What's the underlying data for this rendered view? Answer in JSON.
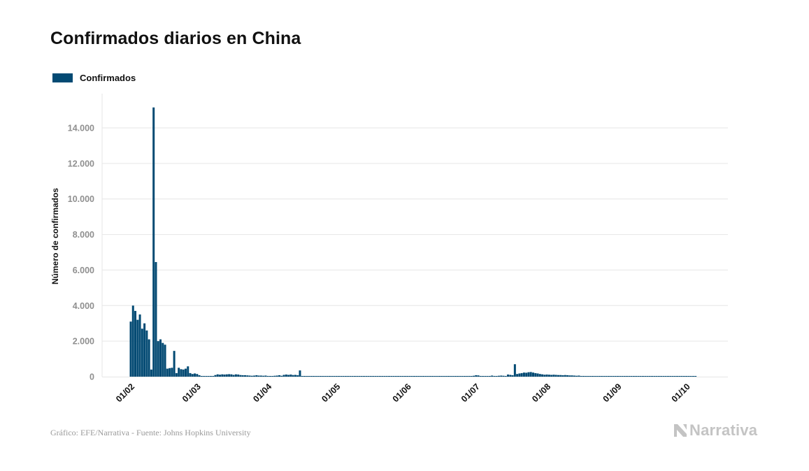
{
  "header": {
    "title": "Confirmados diarios en China"
  },
  "legend": {
    "label": "Confirmados",
    "color": "#034a73"
  },
  "footer": {
    "source": "Gráfico: EFE/Narrativa - Fuente: Johns Hopkins University",
    "logo_text": "Narrativa"
  },
  "chart_data": {
    "type": "bar",
    "title": "Confirmados diarios en China",
    "ylabel": "Número de confirmados",
    "xlabel": "",
    "ylim": [
      0,
      16000
    ],
    "grid": true,
    "legend_position": "top-left",
    "bar_color": "#034a73",
    "yticks": [
      {
        "value": 0,
        "label": "0"
      },
      {
        "value": 2000,
        "label": "2.000"
      },
      {
        "value": 4000,
        "label": "4.000"
      },
      {
        "value": 6000,
        "label": "6.000"
      },
      {
        "value": 8000,
        "label": "8.000"
      },
      {
        "value": 10000,
        "label": "10.000"
      },
      {
        "value": 12000,
        "label": "12.000"
      },
      {
        "value": 14000,
        "label": "14.000"
      }
    ],
    "xticks": [
      {
        "index": 0,
        "label": "01/02"
      },
      {
        "index": 29,
        "label": "01/03"
      },
      {
        "index": 60,
        "label": "01/04"
      },
      {
        "index": 90,
        "label": "01/05"
      },
      {
        "index": 121,
        "label": "01/06"
      },
      {
        "index": 151,
        "label": "01/07"
      },
      {
        "index": 182,
        "label": "01/08"
      },
      {
        "index": 213,
        "label": "01/09"
      },
      {
        "index": 243,
        "label": "01/10"
      }
    ],
    "series": [
      {
        "name": "Confirmados",
        "values": [
          3100,
          4000,
          3700,
          3200,
          3500,
          2700,
          3000,
          2600,
          2100,
          400,
          15150,
          6450,
          2000,
          2100,
          1900,
          1800,
          450,
          480,
          500,
          1450,
          200,
          500,
          420,
          400,
          450,
          580,
          200,
          150,
          180,
          150,
          80,
          40,
          20,
          25,
          30,
          40,
          40,
          90,
          130,
          110,
          130,
          120,
          130,
          140,
          130,
          100,
          130,
          120,
          90,
          80,
          80,
          70,
          60,
          50,
          60,
          80,
          60,
          60,
          50,
          60,
          40,
          30,
          30,
          50,
          60,
          80,
          50,
          100,
          120,
          100,
          120,
          90,
          100,
          80,
          350,
          40,
          20,
          20,
          10,
          10,
          5,
          5,
          3,
          2,
          2,
          1,
          1,
          1,
          1,
          2,
          2,
          1,
          1,
          3,
          1,
          1,
          1,
          2,
          1,
          2,
          1,
          2,
          1,
          1,
          1,
          3,
          2,
          1,
          1,
          1,
          5,
          20,
          30,
          25,
          15,
          20,
          10,
          10,
          15,
          10,
          5,
          3,
          3,
          2,
          2,
          4,
          20,
          15,
          10,
          8,
          5,
          6,
          10,
          8,
          7,
          8,
          6,
          20,
          25,
          15,
          12,
          10,
          20,
          10,
          15,
          30,
          25,
          20,
          40,
          30,
          50,
          80,
          70,
          40,
          30,
          20,
          25,
          30,
          60,
          40,
          30,
          50,
          60,
          50,
          40,
          120,
          100,
          80,
          700,
          150,
          180,
          200,
          230,
          220,
          250,
          260,
          230,
          200,
          180,
          150,
          130,
          110,
          120,
          110,
          100,
          110,
          100,
          90,
          90,
          80,
          90,
          80,
          70,
          70,
          60,
          50,
          60,
          40,
          40,
          30,
          30,
          30,
          25,
          25,
          20,
          20,
          20,
          20,
          20,
          20,
          20,
          20,
          20,
          20,
          20,
          20,
          20,
          20,
          20,
          20,
          20,
          20,
          20,
          20,
          20,
          20,
          20,
          20,
          20,
          20,
          20,
          20,
          20,
          20,
          20,
          20,
          30,
          25,
          20,
          20,
          30,
          40,
          30,
          20,
          25,
          20,
          20,
          20
        ]
      }
    ]
  }
}
